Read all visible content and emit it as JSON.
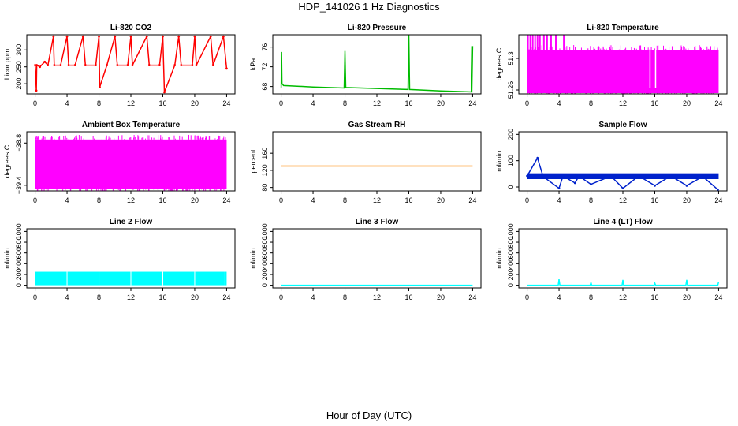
{
  "page": {
    "title": "HDP_141026  1 Hz Diagnostics",
    "xlabel": "Hour of Day (UTC)"
  },
  "chart_data": [
    {
      "type": "line",
      "title": "Li-820 CO2",
      "ylabel": "Licor ppm",
      "color": "#ff0000",
      "xlim": [
        0,
        24
      ],
      "ylim": [
        170,
        345
      ],
      "xticks": [
        0,
        4,
        8,
        12,
        16,
        20,
        24
      ],
      "yticks": [
        200,
        250,
        300
      ],
      "baseline": 255,
      "series": [
        {
          "name": "",
          "x": [
            0,
            0.15,
            0.2,
            0.6,
            1.2,
            1.6,
            2.3,
            2.4,
            3.2,
            4.0,
            4.2,
            5.0,
            6.0,
            6.3,
            7.6,
            8.0,
            8.1,
            9.0,
            10.0,
            10.3,
            11.6,
            12.0,
            12.2,
            14.0,
            14.3,
            15.6,
            16.0,
            16.2,
            17.5,
            18.0,
            18.3,
            19.7,
            20.0,
            20.2,
            22.0,
            22.3,
            23.6,
            24.0
          ],
          "y": [
            255,
            180,
            255,
            250,
            265,
            255,
            340,
            255,
            255,
            340,
            255,
            255,
            340,
            255,
            255,
            340,
            190,
            255,
            340,
            255,
            255,
            340,
            255,
            340,
            255,
            255,
            340,
            175,
            255,
            340,
            255,
            255,
            340,
            255,
            340,
            255,
            340,
            245
          ]
        }
      ]
    },
    {
      "type": "line",
      "title": "Li-820 Pressure",
      "ylabel": "kPa",
      "color": "#00bb00",
      "xlim": [
        0,
        24
      ],
      "ylim": [
        66.5,
        78.5
      ],
      "xticks": [
        0,
        4,
        8,
        12,
        16,
        20,
        24
      ],
      "yticks": [
        68,
        72,
        76
      ],
      "series": [
        {
          "name": "",
          "x": [
            0,
            0.05,
            0.1,
            0.3,
            4,
            7.9,
            8.0,
            8.1,
            12,
            15.9,
            16.0,
            16.1,
            20,
            23.9,
            24.0
          ],
          "y": [
            67.8,
            75.0,
            68.6,
            68.2,
            67.9,
            67.7,
            75.2,
            67.8,
            67.6,
            67.4,
            78.5,
            67.4,
            67.1,
            66.9,
            76.2
          ]
        }
      ]
    },
    {
      "type": "area",
      "title": "Li-820 Temperature",
      "ylabel": "degrees C",
      "color": "#ff00ff",
      "xlim": [
        0,
        24
      ],
      "ylim": [
        51.255,
        51.33
      ],
      "xticks": [
        0,
        4,
        8,
        12,
        16,
        20,
        24
      ],
      "yticks": [
        51.26,
        51.3
      ],
      "band_low": 51.256,
      "band_high": 51.311,
      "spikes_high_x": [
        0.1,
        0.4,
        0.7,
        1.0,
        1.3,
        1.6,
        2.1,
        2.5,
        3.0,
        3.6,
        4.6
      ],
      "spikes_low_x": [
        15.4,
        16.1
      ]
    },
    {
      "type": "area",
      "title": "Ambient Box Temperature",
      "ylabel": "degrees C",
      "color": "#ff00ff",
      "xlim": [
        0,
        24
      ],
      "ylim": [
        -39.48,
        -38.64
      ],
      "xticks": [
        0,
        4,
        8,
        12,
        16,
        20,
        24
      ],
      "yticks": [
        -39.4,
        -38.8
      ],
      "band_low": -39.45,
      "band_high": -38.75
    },
    {
      "type": "line",
      "title": "Gas Stream RH",
      "ylabel": "percent",
      "color": "#ff8800",
      "xlim": [
        0,
        24
      ],
      "ylim": [
        72,
        210
      ],
      "xticks": [
        0,
        4,
        8,
        12,
        16,
        20,
        24
      ],
      "yticks": [
        80,
        120,
        160
      ],
      "series": [
        {
          "name": "",
          "x": [
            0,
            24
          ],
          "y": [
            130,
            130
          ]
        }
      ]
    },
    {
      "type": "line",
      "title": "Sample Flow",
      "ylabel": "ml/min",
      "color": "#0022cc",
      "xlim": [
        0,
        24
      ],
      "ylim": [
        -15,
        210
      ],
      "xticks": [
        0,
        4,
        8,
        12,
        16,
        20,
        24
      ],
      "yticks": [
        0,
        100,
        200
      ],
      "band_low": 30,
      "band_high": 52,
      "series": [
        {
          "name": "",
          "x": [
            0,
            1.3,
            2.0,
            4.0,
            4.5,
            6.0,
            6.5,
            8.0,
            10.5,
            12.0,
            14.0,
            16.0,
            18.0,
            20.0,
            22.0,
            23.9
          ],
          "y": [
            42,
            110,
            40,
            -5,
            42,
            15,
            42,
            10,
            42,
            -5,
            42,
            5,
            42,
            5,
            40,
            -10
          ]
        }
      ]
    },
    {
      "type": "area",
      "title": "Line 2 Flow",
      "ylabel": "ml/min",
      "color": "#00ffff",
      "xlim": [
        0,
        24
      ],
      "ylim": [
        -50,
        1050
      ],
      "xticks": [
        0,
        4,
        8,
        12,
        16,
        20,
        24
      ],
      "yticks": [
        0,
        200,
        400,
        600,
        800,
        1000
      ],
      "band_low": 0,
      "band_high": 250,
      "gaps_x": [
        4,
        8,
        12,
        16,
        20,
        23.8
      ]
    },
    {
      "type": "line",
      "title": "Line 3 Flow",
      "ylabel": "ml/min",
      "color": "#00ffff",
      "xlim": [
        0,
        24
      ],
      "ylim": [
        -50,
        1050
      ],
      "xticks": [
        0,
        4,
        8,
        12,
        16,
        20,
        24
      ],
      "yticks": [
        0,
        200,
        400,
        600,
        800,
        1000
      ],
      "series": [
        {
          "name": "",
          "x": [
            0,
            24
          ],
          "y": [
            0,
            0
          ]
        }
      ]
    },
    {
      "type": "line",
      "title": "Line 4 (LT) Flow",
      "ylabel": "ml/min",
      "color": "#00ffff",
      "xlim": [
        0,
        24
      ],
      "ylim": [
        -50,
        1050
      ],
      "xticks": [
        0,
        4,
        8,
        12,
        16,
        20,
        24
      ],
      "yticks": [
        0,
        200,
        400,
        600,
        800,
        1000
      ],
      "series": [
        {
          "name": "",
          "x": [
            0,
            3.9,
            4.0,
            4.1,
            7.9,
            8.0,
            8.1,
            11.9,
            12.0,
            12.1,
            15.9,
            16.0,
            16.1,
            19.9,
            20.0,
            20.1,
            23.9,
            24.0
          ],
          "y": [
            0,
            0,
            110,
            0,
            0,
            50,
            0,
            0,
            100,
            0,
            0,
            40,
            0,
            0,
            100,
            0,
            0,
            60
          ]
        }
      ]
    }
  ]
}
